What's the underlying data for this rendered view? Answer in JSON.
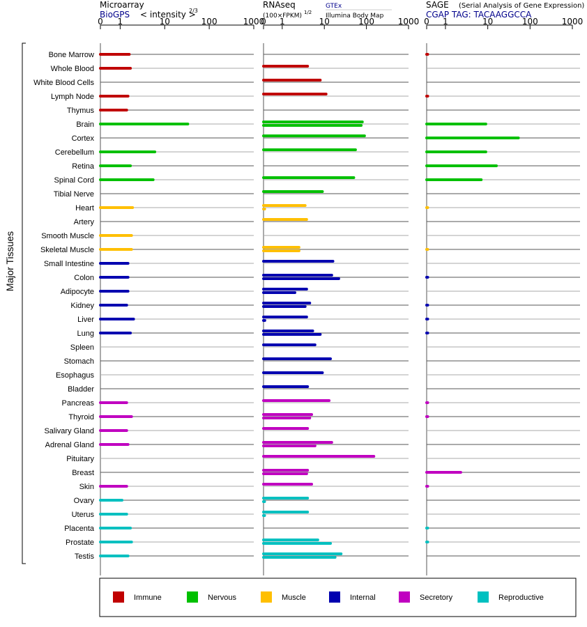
{
  "headers": {
    "microarray": {
      "title": "Microarray",
      "source": "BioGPS",
      "unit": "< intensity >",
      "unit_exp": "2/3"
    },
    "rnaseq": {
      "title": "RNAseq",
      "unit": "(100×FPKM)",
      "unit_exp": "1/2",
      "source_a": "GTEx",
      "source_b": "Illumina Body Map"
    },
    "sage": {
      "title": "SAGE",
      "subtitle": "(Serial Analysis of Gene Expression)",
      "tag": "CGAP TAG: TACAAGGCCA"
    }
  },
  "y_group_label": "Major Tissues",
  "legend": [
    {
      "label": "Immune",
      "color": "#c00000"
    },
    {
      "label": "Nervous",
      "color": "#00c000"
    },
    {
      "label": "Muscle",
      "color": "#ffbf00"
    },
    {
      "label": "Internal",
      "color": "#0000b0"
    },
    {
      "label": "Secretory",
      "color": "#c000c0"
    },
    {
      "label": "Reproductive",
      "color": "#00c0c0"
    }
  ],
  "chart_data": {
    "type": "bar",
    "orientation": "horizontal",
    "x_scale": "log",
    "xlim": [
      0,
      1000
    ],
    "tick_labels": [
      "0",
      "1",
      "10",
      "100",
      "1000"
    ],
    "categories": [
      "Bone Marrow",
      "Whole Blood",
      "White Blood Cells",
      "Lymph Node",
      "Thymus",
      "Brain",
      "Cortex",
      "Cerebellum",
      "Retina",
      "Spinal Cord",
      "Tibial Nerve",
      "Heart",
      "Artery",
      "Smooth Muscle",
      "Skeletal Muscle",
      "Small Intestine",
      "Colon",
      "Adipocyte",
      "Kidney",
      "Liver",
      "Lung",
      "Spleen",
      "Stomach",
      "Esophagus",
      "Bladder",
      "Pancreas",
      "Thyroid",
      "Salivary Gland",
      "Adrenal Gland",
      "Pituitary",
      "Breast",
      "Skin",
      "Ovary",
      "Uterus",
      "Placenta",
      "Prostate",
      "Testis"
    ],
    "groups": [
      "Immune",
      "Immune",
      "Immune",
      "Immune",
      "Immune",
      "Nervous",
      "Nervous",
      "Nervous",
      "Nervous",
      "Nervous",
      "Nervous",
      "Muscle",
      "Muscle",
      "Muscle",
      "Muscle",
      "Internal",
      "Internal",
      "Internal",
      "Internal",
      "Internal",
      "Internal",
      "Internal",
      "Internal",
      "Internal",
      "Internal",
      "Secretory",
      "Secretory",
      "Secretory",
      "Secretory",
      "Secretory",
      "Secretory",
      "Secretory",
      "Reproductive",
      "Reproductive",
      "Reproductive",
      "Reproductive",
      "Reproductive"
    ],
    "microarray": [
      1.6,
      1.7,
      null,
      1.5,
      1.4,
      33,
      null,
      6,
      1.7,
      5.5,
      null,
      1.9,
      null,
      1.8,
      1.8,
      1.5,
      1.5,
      1.5,
      1.4,
      2.0,
      1.7,
      null,
      null,
      null,
      null,
      1.4,
      1.8,
      1.4,
      1.5,
      null,
      null,
      1.4,
      1.1,
      1.4,
      1.7,
      1.8,
      1.5
    ],
    "rnaseq_gtex": [
      null,
      4,
      8,
      11,
      null,
      80,
      90,
      55,
      null,
      50,
      9,
      3.5,
      3.8,
      null,
      2.5,
      16,
      15,
      3.8,
      4.5,
      3.8,
      5.3,
      6,
      14,
      9,
      4,
      13,
      5,
      4,
      15,
      150,
      4,
      5,
      4,
      4,
      null,
      7,
      25
    ],
    "rnaseq_ibm": [
      null,
      null,
      null,
      null,
      null,
      75,
      null,
      null,
      null,
      null,
      null,
      0.06,
      null,
      null,
      2.5,
      null,
      22,
      2,
      3.5,
      0.07,
      8,
      null,
      null,
      null,
      null,
      null,
      4.5,
      null,
      6,
      null,
      3.8,
      null,
      0.05,
      0.05,
      null,
      14,
      18
    ],
    "sage": [
      0.05,
      null,
      null,
      0.05,
      null,
      9,
      53,
      9,
      16,
      7,
      null,
      0.05,
      null,
      null,
      0.05,
      null,
      0.05,
      null,
      0.05,
      0.05,
      0.05,
      null,
      null,
      null,
      null,
      0.05,
      0.05,
      null,
      null,
      null,
      2.3,
      0.05,
      null,
      null,
      0.05,
      0.05,
      null
    ]
  }
}
